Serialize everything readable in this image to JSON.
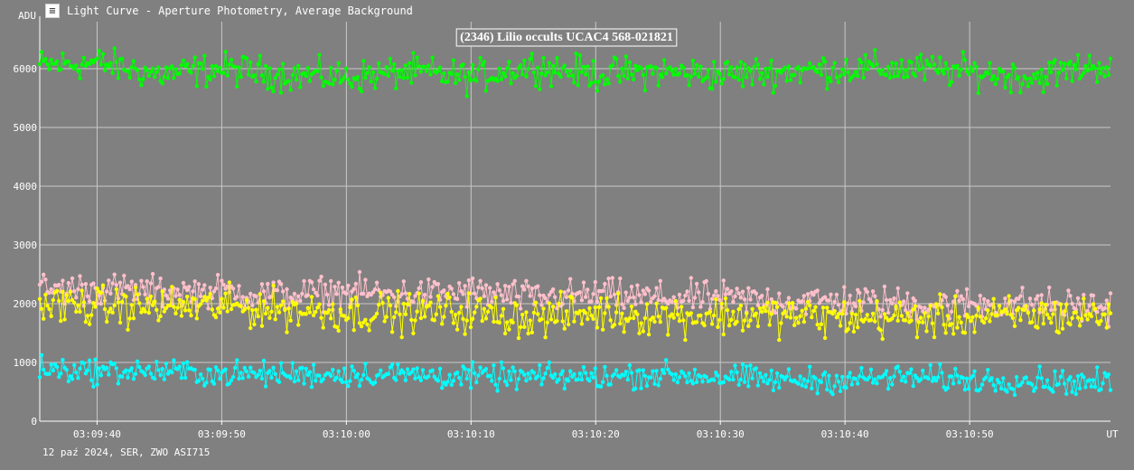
{
  "window": {
    "title": "Light Curve - Aperture Photometry, Average Background",
    "icon": "light-curve-app-icon"
  },
  "footer": {
    "text": "12 paź 2024, SER, ZWO ASI715"
  },
  "chart_data": {
    "type": "line",
    "title": "(2346) Lilio occults UCAC4 568-021821",
    "ylabel": "ADU",
    "xlabel": "UT",
    "ylim": [
      0,
      6800
    ],
    "yticks": [
      0,
      1000,
      2000,
      3000,
      4000,
      5000,
      6000
    ],
    "x_range": [
      "03:09:35.4",
      "03:11:01.3"
    ],
    "xticks": [
      "03:09:40",
      "03:09:50",
      "03:10:00",
      "03:10:10",
      "03:10:20",
      "03:10:30",
      "03:10:40",
      "03:10:50"
    ],
    "grid": true,
    "legend": "none",
    "markers": true,
    "series": [
      {
        "color": "#00ff00",
        "x": [
          "03:09:35",
          "03:09:40",
          "03:09:45",
          "03:09:50",
          "03:09:55",
          "03:10:00",
          "03:10:05",
          "03:10:10",
          "03:10:15",
          "03:10:20",
          "03:10:25",
          "03:10:30",
          "03:10:35",
          "03:10:40",
          "03:10:45",
          "03:10:50",
          "03:10:55",
          "03:11:00"
        ],
        "values": [
          6050,
          6100,
          5900,
          6000,
          5900,
          5850,
          5950,
          5850,
          6050,
          5900,
          5950,
          5900,
          5950,
          6000,
          6000,
          5950,
          5850,
          6050
        ],
        "spread": 450
      },
      {
        "color": "#ffc0cb",
        "x": [
          "03:09:35",
          "03:09:40",
          "03:09:45",
          "03:09:50",
          "03:09:55",
          "03:10:00",
          "03:10:05",
          "03:10:10",
          "03:10:15",
          "03:10:20",
          "03:10:25",
          "03:10:30",
          "03:10:35",
          "03:10:40",
          "03:10:45",
          "03:10:50",
          "03:10:55",
          "03:11:00"
        ],
        "values": [
          2250,
          2250,
          2200,
          2200,
          2150,
          2200,
          2150,
          2200,
          2100,
          2150,
          2100,
          2100,
          2050,
          2050,
          2000,
          2000,
          2000,
          1950
        ],
        "spread": 450
      },
      {
        "color": "#ffff00",
        "x": [
          "03:09:35",
          "03:09:40",
          "03:09:45",
          "03:09:50",
          "03:09:55",
          "03:10:00",
          "03:10:05",
          "03:10:10",
          "03:10:15",
          "03:10:20",
          "03:10:25",
          "03:10:30",
          "03:10:35",
          "03:10:40",
          "03:10:45",
          "03:10:50",
          "03:10:55",
          "03:11:00"
        ],
        "values": [
          2000,
          1950,
          1950,
          1950,
          1900,
          1850,
          1850,
          1850,
          1750,
          1850,
          1800,
          1800,
          1800,
          1750,
          1750,
          1750,
          1800,
          1800
        ],
        "spread": 550
      },
      {
        "color": "#00ffff",
        "x": [
          "03:09:35",
          "03:09:40",
          "03:09:45",
          "03:09:50",
          "03:09:55",
          "03:10:00",
          "03:10:05",
          "03:10:10",
          "03:10:15",
          "03:10:20",
          "03:10:25",
          "03:10:30",
          "03:10:35",
          "03:10:40",
          "03:10:45",
          "03:10:50",
          "03:10:55",
          "03:11:00"
        ],
        "values": [
          900,
          850,
          850,
          800,
          800,
          800,
          800,
          750,
          750,
          750,
          800,
          750,
          700,
          700,
          750,
          700,
          700,
          650
        ],
        "spread": 350
      }
    ]
  }
}
